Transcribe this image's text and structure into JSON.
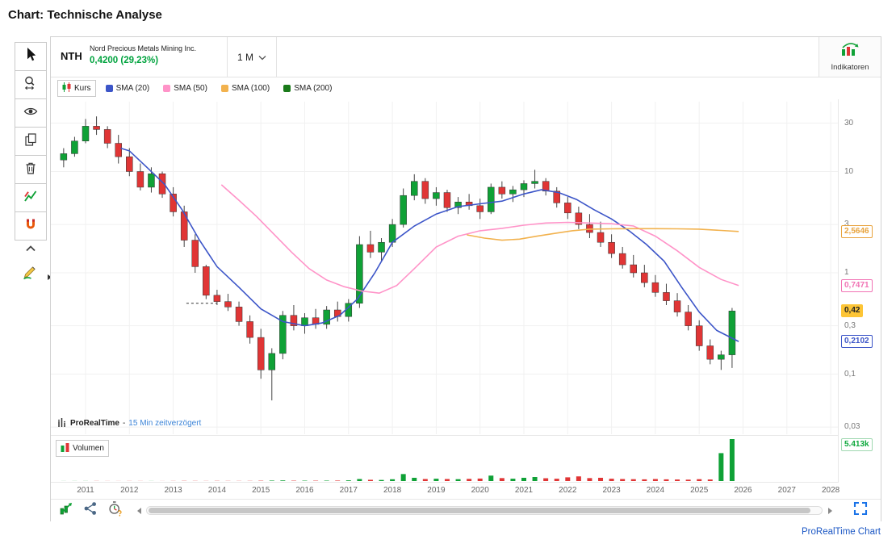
{
  "page": {
    "title": "Chart: Technische Analyse",
    "footer_link": "ProRealTime Chart"
  },
  "header": {
    "symbol": "NTH",
    "company": "Nord Precious Metals Mining Inc.",
    "price": "0,4200 (29,23%)",
    "timeframe": "1 M",
    "indicators_label": "Indikatoren"
  },
  "legend": {
    "main": [
      {
        "label": "Kurs"
      },
      {
        "label": "SMA (20)"
      },
      {
        "label": "SMA (50)"
      },
      {
        "label": "SMA (100)"
      },
      {
        "label": "SMA (200)"
      }
    ],
    "volume_label": "Volumen"
  },
  "watermark": {
    "brand": "ProRealTime",
    "dash": "-",
    "delay": "15 Min zeitverzögert"
  },
  "colors": {
    "price_up_text": "#00a33e",
    "candle_up": "#0fa136",
    "candle_down": "#e03535",
    "wick": "#444444",
    "grid": "#f1f1f1",
    "volume_label": "#0da83c",
    "link_blue": "#1a56c4",
    "delay_blue": "#3d85d8",
    "fullscreen_blue": "#1a73e8"
  },
  "toolbar_left": {
    "items": [
      {
        "name": "cursor-tool",
        "icon": "cursor-icon"
      },
      {
        "name": "zoom-tool",
        "icon": "zoom-icon"
      },
      {
        "name": "view-tool",
        "icon": "eye-icon"
      },
      {
        "name": "duplicate-tool",
        "icon": "copy-icon"
      },
      {
        "name": "delete-tool",
        "icon": "trash-icon"
      },
      {
        "name": "chart-style-tool",
        "icon": "chart-style-icon"
      },
      {
        "name": "magnet-tool",
        "icon": "magnet-icon"
      },
      {
        "name": "collapse-tool",
        "icon": "chevron-up-icon"
      },
      {
        "name": "draw-tool",
        "icon": "pencil-icon"
      }
    ]
  },
  "toolbar_bottom": {
    "items": [
      {
        "name": "pattern-tool",
        "icon": "candles-arrow-icon"
      },
      {
        "name": "share-tool",
        "icon": "share-icon"
      },
      {
        "name": "timer-tool",
        "icon": "stopwatch-icon"
      }
    ],
    "fullscreen": "fullscreen-icon"
  },
  "chart_data": {
    "type": "candlestick",
    "timeframe": "monthly",
    "log_scale": true,
    "title": "NTH Nord Precious Metals Mining Inc.",
    "x_ticks": [
      2011,
      2012,
      2013,
      2014,
      2015,
      2016,
      2017,
      2018,
      2019,
      2020,
      2021,
      2022,
      2023,
      2024,
      2025,
      2026,
      2027,
      2028
    ],
    "y_ticks": [
      {
        "label": "30",
        "value": 30
      },
      {
        "label": "10",
        "value": 10
      },
      {
        "label": "3",
        "value": 3
      },
      {
        "label": "1",
        "value": 1
      },
      {
        "label": "0,3",
        "value": 0.3
      },
      {
        "label": "0,1",
        "value": 0.1
      },
      {
        "label": "0,03",
        "value": 0.03
      }
    ],
    "price_tags": [
      {
        "label": "2,5646",
        "value": 2.5646,
        "color": "#e8a33d",
        "style": "outline"
      },
      {
        "label": "0,7471",
        "value": 0.7471,
        "color": "#f173b4",
        "style": "outline"
      },
      {
        "label": "0,42",
        "value": 0.42,
        "color": "#fdc536",
        "style": "filled"
      },
      {
        "label": "0,2102",
        "value": 0.2102,
        "color": "#3c55c8",
        "style": "outline"
      }
    ],
    "volume_tag": {
      "label": "5.413k",
      "value": 5413
    },
    "candles": [
      [
        2010.5,
        13,
        17,
        11,
        15
      ],
      [
        2010.75,
        15,
        22,
        14,
        20
      ],
      [
        2011.0,
        20,
        33,
        19,
        28
      ],
      [
        2011.25,
        28,
        35,
        23,
        26
      ],
      [
        2011.5,
        26,
        28,
        17,
        19
      ],
      [
        2011.75,
        19,
        23,
        12,
        14
      ],
      [
        2012.0,
        14,
        17,
        9,
        10
      ],
      [
        2012.25,
        10,
        12,
        6.5,
        7
      ],
      [
        2012.5,
        7,
        11,
        6.2,
        9.5
      ],
      [
        2012.75,
        9.5,
        10,
        5.5,
        6
      ],
      [
        2013.0,
        6,
        7,
        3.6,
        4
      ],
      [
        2013.25,
        4,
        4.6,
        1.8,
        2.1
      ],
      [
        2013.5,
        2.1,
        2.4,
        1.0,
        1.15
      ],
      [
        2013.75,
        1.15,
        1.2,
        0.55,
        0.6
      ],
      [
        2014.0,
        0.6,
        0.68,
        0.48,
        0.52
      ],
      [
        2014.25,
        0.52,
        0.62,
        0.42,
        0.46
      ],
      [
        2014.5,
        0.46,
        0.52,
        0.3,
        0.33
      ],
      [
        2014.75,
        0.33,
        0.38,
        0.2,
        0.23
      ],
      [
        2015.0,
        0.23,
        0.28,
        0.09,
        0.11
      ],
      [
        2015.25,
        0.11,
        0.18,
        0.055,
        0.16
      ],
      [
        2015.5,
        0.16,
        0.42,
        0.14,
        0.38
      ],
      [
        2015.75,
        0.38,
        0.48,
        0.27,
        0.3
      ],
      [
        2016.0,
        0.3,
        0.4,
        0.25,
        0.36
      ],
      [
        2016.25,
        0.36,
        0.44,
        0.28,
        0.31
      ],
      [
        2016.5,
        0.31,
        0.47,
        0.28,
        0.43
      ],
      [
        2016.75,
        0.43,
        0.52,
        0.33,
        0.37
      ],
      [
        2017.0,
        0.37,
        0.55,
        0.33,
        0.5
      ],
      [
        2017.25,
        0.5,
        2.3,
        0.45,
        1.9
      ],
      [
        2017.5,
        1.9,
        2.6,
        1.4,
        1.6
      ],
      [
        2017.75,
        1.6,
        2.2,
        1.3,
        2.0
      ],
      [
        2018.0,
        2.0,
        3.4,
        1.8,
        3.0
      ],
      [
        2018.25,
        3.0,
        6.8,
        2.8,
        5.8
      ],
      [
        2018.5,
        5.8,
        9.4,
        5.2,
        8.0
      ],
      [
        2018.75,
        8.0,
        8.6,
        4.8,
        5.4
      ],
      [
        2019.0,
        5.4,
        7.0,
        4.6,
        6.2
      ],
      [
        2019.25,
        6.2,
        6.6,
        4.0,
        4.4
      ],
      [
        2019.5,
        4.4,
        5.6,
        3.8,
        5.0
      ],
      [
        2019.75,
        5.0,
        6.0,
        4.2,
        4.6
      ],
      [
        2020.0,
        4.6,
        5.4,
        3.4,
        4.0
      ],
      [
        2020.25,
        4.0,
        7.6,
        3.8,
        7.0
      ],
      [
        2020.5,
        7.0,
        8.0,
        5.4,
        6.0
      ],
      [
        2020.75,
        6.0,
        7.2,
        5.0,
        6.6
      ],
      [
        2021.0,
        6.6,
        8.2,
        5.6,
        7.6
      ],
      [
        2021.25,
        7.6,
        10.4,
        6.8,
        8.0
      ],
      [
        2021.5,
        8.0,
        8.6,
        5.8,
        6.4
      ],
      [
        2021.75,
        6.4,
        7.0,
        4.4,
        4.9
      ],
      [
        2022.0,
        4.9,
        5.6,
        3.4,
        3.9
      ],
      [
        2022.25,
        3.9,
        4.5,
        2.7,
        3.0
      ],
      [
        2022.5,
        3.0,
        3.8,
        2.2,
        2.5
      ],
      [
        2022.75,
        2.5,
        3.2,
        1.8,
        2.0
      ],
      [
        2023.0,
        2.0,
        2.4,
        1.4,
        1.55
      ],
      [
        2023.25,
        1.55,
        1.8,
        1.1,
        1.2
      ],
      [
        2023.5,
        1.2,
        1.5,
        0.9,
        1.0
      ],
      [
        2023.75,
        1.0,
        1.2,
        0.72,
        0.8
      ],
      [
        2024.0,
        0.8,
        0.95,
        0.58,
        0.64
      ],
      [
        2024.25,
        0.64,
        0.78,
        0.48,
        0.53
      ],
      [
        2024.5,
        0.53,
        0.63,
        0.37,
        0.41
      ],
      [
        2024.75,
        0.41,
        0.48,
        0.27,
        0.3
      ],
      [
        2025.0,
        0.3,
        0.34,
        0.17,
        0.19
      ],
      [
        2025.25,
        0.19,
        0.22,
        0.125,
        0.14
      ],
      [
        2025.5,
        0.14,
        0.17,
        0.11,
        0.155
      ],
      [
        2025.75,
        0.155,
        0.45,
        0.115,
        0.42
      ]
    ],
    "volumes": [
      8,
      10,
      12,
      15,
      10,
      9,
      14,
      12,
      10,
      8,
      15,
      25,
      20,
      15,
      25,
      20,
      18,
      22,
      40,
      60,
      80,
      45,
      50,
      45,
      55,
      60,
      90,
      260,
      160,
      140,
      230,
      900,
      420,
      260,
      300,
      260,
      240,
      280,
      320,
      700,
      380,
      300,
      420,
      520,
      360,
      300,
      480,
      600,
      380,
      420,
      300,
      260,
      240,
      220,
      260,
      220,
      200,
      180,
      240,
      200,
      3600,
      5413
    ],
    "series": [
      {
        "name": "SMA (20)",
        "color": "#3c55c8",
        "points": [
          [
            2011.8,
            17
          ],
          [
            2012.0,
            16
          ],
          [
            2012.4,
            11
          ],
          [
            2012.8,
            7.5
          ],
          [
            2013.2,
            4.2
          ],
          [
            2013.6,
            2.1
          ],
          [
            2014.0,
            1.15
          ],
          [
            2014.5,
            0.72
          ],
          [
            2015.0,
            0.44
          ],
          [
            2015.5,
            0.33
          ],
          [
            2016.0,
            0.3
          ],
          [
            2016.4,
            0.32
          ],
          [
            2016.8,
            0.38
          ],
          [
            2017.2,
            0.55
          ],
          [
            2017.6,
            1.0
          ],
          [
            2018.0,
            2.0
          ],
          [
            2018.5,
            2.9
          ],
          [
            2019.0,
            3.8
          ],
          [
            2019.5,
            4.5
          ],
          [
            2020.0,
            4.8
          ],
          [
            2020.5,
            5.1
          ],
          [
            2021.0,
            6.0
          ],
          [
            2021.4,
            6.6
          ],
          [
            2021.8,
            6.2
          ],
          [
            2022.2,
            5.3
          ],
          [
            2022.6,
            4.2
          ],
          [
            2023.0,
            3.4
          ],
          [
            2023.4,
            2.6
          ],
          [
            2023.8,
            1.9
          ],
          [
            2024.2,
            1.3
          ],
          [
            2024.6,
            0.72
          ],
          [
            2025.0,
            0.41
          ],
          [
            2025.4,
            0.27
          ],
          [
            2025.9,
            0.21
          ]
        ]
      },
      {
        "name": "SMA (50)",
        "color": "#ff93c8",
        "points": [
          [
            2014.1,
            7.4
          ],
          [
            2014.5,
            5.2
          ],
          [
            2014.9,
            3.6
          ],
          [
            2015.3,
            2.4
          ],
          [
            2015.7,
            1.6
          ],
          [
            2016.1,
            1.1
          ],
          [
            2016.5,
            0.85
          ],
          [
            2016.9,
            0.73
          ],
          [
            2017.3,
            0.66
          ],
          [
            2017.7,
            0.63
          ],
          [
            2018.1,
            0.75
          ],
          [
            2018.5,
            1.1
          ],
          [
            2019.0,
            1.8
          ],
          [
            2019.5,
            2.3
          ],
          [
            2020.0,
            2.6
          ],
          [
            2020.5,
            2.75
          ],
          [
            2021.0,
            2.95
          ],
          [
            2021.5,
            3.1
          ],
          [
            2022.0,
            3.15
          ],
          [
            2022.5,
            3.1
          ],
          [
            2023.0,
            3.05
          ],
          [
            2023.5,
            2.9
          ],
          [
            2024.0,
            2.3
          ],
          [
            2024.5,
            1.65
          ],
          [
            2025.0,
            1.13
          ],
          [
            2025.5,
            0.86
          ],
          [
            2025.9,
            0.75
          ]
        ]
      },
      {
        "name": "SMA (100)",
        "color": "#f2b24e",
        "points": [
          [
            2019.7,
            2.37
          ],
          [
            2020.1,
            2.2
          ],
          [
            2020.5,
            2.1
          ],
          [
            2020.9,
            2.15
          ],
          [
            2021.3,
            2.3
          ],
          [
            2021.7,
            2.45
          ],
          [
            2022.1,
            2.6
          ],
          [
            2022.5,
            2.7
          ],
          [
            2023.0,
            2.72
          ],
          [
            2023.5,
            2.73
          ],
          [
            2024.0,
            2.73
          ],
          [
            2024.5,
            2.72
          ],
          [
            2025.0,
            2.7
          ],
          [
            2025.5,
            2.62
          ],
          [
            2025.9,
            2.56
          ]
        ]
      },
      {
        "name": "SMA (200)",
        "color": "#1a7a1a",
        "points": []
      }
    ],
    "annotations": [
      {
        "type": "dashed-line",
        "value": 0.5,
        "from": 2013.3,
        "to": 2014.0
      }
    ]
  }
}
